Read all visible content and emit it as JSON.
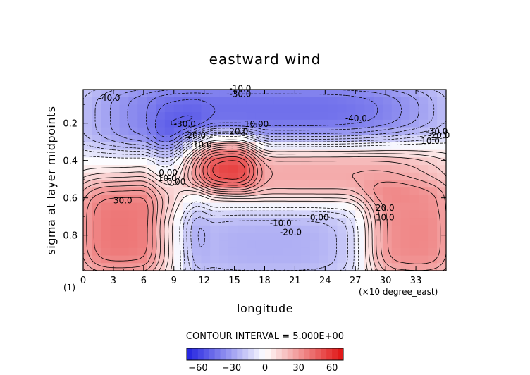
{
  "chart_data": {
    "type": "heatmap",
    "title": "eastward wind",
    "xlabel": "longitude",
    "ylabel": "sigma at layer midpoints",
    "x_unit_note": "(×10 degree_east)",
    "panel_index": "(1)",
    "x_ticks": [
      "0",
      "3",
      "6",
      "9",
      "12",
      "15",
      "18",
      "21",
      "24",
      "27",
      "30",
      "33"
    ],
    "y_ticks": [
      "0.2",
      "0.4",
      "0.6",
      "0.8"
    ],
    "xlim": [
      0,
      36
    ],
    "ylim": [
      0.02,
      0.99
    ],
    "y_inverted": true,
    "contour_interval_text": "CONTOUR INTERVAL = 5.000E+00",
    "colorbar": {
      "range": [
        -70,
        70
      ],
      "tick_labels": [
        "−60",
        "−30",
        "0",
        "30",
        "60"
      ],
      "tick_values": [
        -60,
        -30,
        0,
        30,
        60
      ],
      "negative_color": "#2020e0",
      "zero_color": "#ffffff",
      "positive_color": "#e01010"
    },
    "contour_labels": [
      {
        "text": "-40.0",
        "x": 1.5,
        "y": 0.08
      },
      {
        "text": "-10.0",
        "x": 14.5,
        "y": 0.03
      },
      {
        "text": "-30.0",
        "x": 14.5,
        "y": 0.06
      },
      {
        "text": "-40.0",
        "x": 26.0,
        "y": 0.19
      },
      {
        "text": "-30.0",
        "x": 9.0,
        "y": 0.22
      },
      {
        "text": "-20.0",
        "x": 10.0,
        "y": 0.28
      },
      {
        "text": "-10.0",
        "x": 10.6,
        "y": 0.33
      },
      {
        "text": "10.00",
        "x": 16.0,
        "y": 0.22
      },
      {
        "text": "20.0",
        "x": 14.5,
        "y": 0.26
      },
      {
        "text": "-30.0",
        "x": 34.0,
        "y": 0.26
      },
      {
        "text": "-20.0",
        "x": 34.2,
        "y": 0.28
      },
      {
        "text": "10.0",
        "x": 33.5,
        "y": 0.31
      },
      {
        "text": "0.00",
        "x": 7.5,
        "y": 0.48
      },
      {
        "text": "0.00",
        "x": 8.3,
        "y": 0.53
      },
      {
        "text": "10.0",
        "x": 7.4,
        "y": 0.51
      },
      {
        "text": "30.0",
        "x": 3.0,
        "y": 0.63
      },
      {
        "text": "20.0",
        "x": 29.0,
        "y": 0.67
      },
      {
        "text": "10.0",
        "x": 29.0,
        "y": 0.72
      },
      {
        "text": "0.00",
        "x": 22.5,
        "y": 0.72
      },
      {
        "text": "-10.0",
        "x": 18.5,
        "y": 0.75
      },
      {
        "text": "-20.0",
        "x": 19.5,
        "y": 0.8
      }
    ],
    "field_features": [
      {
        "kind": "easterly_jet",
        "x": [
          0,
          36
        ],
        "sigma": [
          0.02,
          0.3
        ],
        "value": -45
      },
      {
        "kind": "westerly_core",
        "x": [
          11,
          16
        ],
        "sigma": [
          0.3,
          0.5
        ],
        "value": 35
      },
      {
        "kind": "westerly_band",
        "x": [
          11,
          36
        ],
        "sigma": [
          0.3,
          0.55
        ],
        "value": 25
      },
      {
        "kind": "westerly_lower_west",
        "x": [
          0,
          9
        ],
        "sigma": [
          0.55,
          0.99
        ],
        "value": 40
      },
      {
        "kind": "westerly_lower_east",
        "x": [
          29,
          36
        ],
        "sigma": [
          0.6,
          0.99
        ],
        "value": 35
      },
      {
        "kind": "easterly_lower",
        "x": [
          10,
          27
        ],
        "sigma": [
          0.72,
          0.99
        ],
        "value": -25
      },
      {
        "kind": "easterly_wedge",
        "x": [
          8,
          11
        ],
        "sigma": [
          0.2,
          0.99
        ],
        "value": -15
      }
    ]
  }
}
